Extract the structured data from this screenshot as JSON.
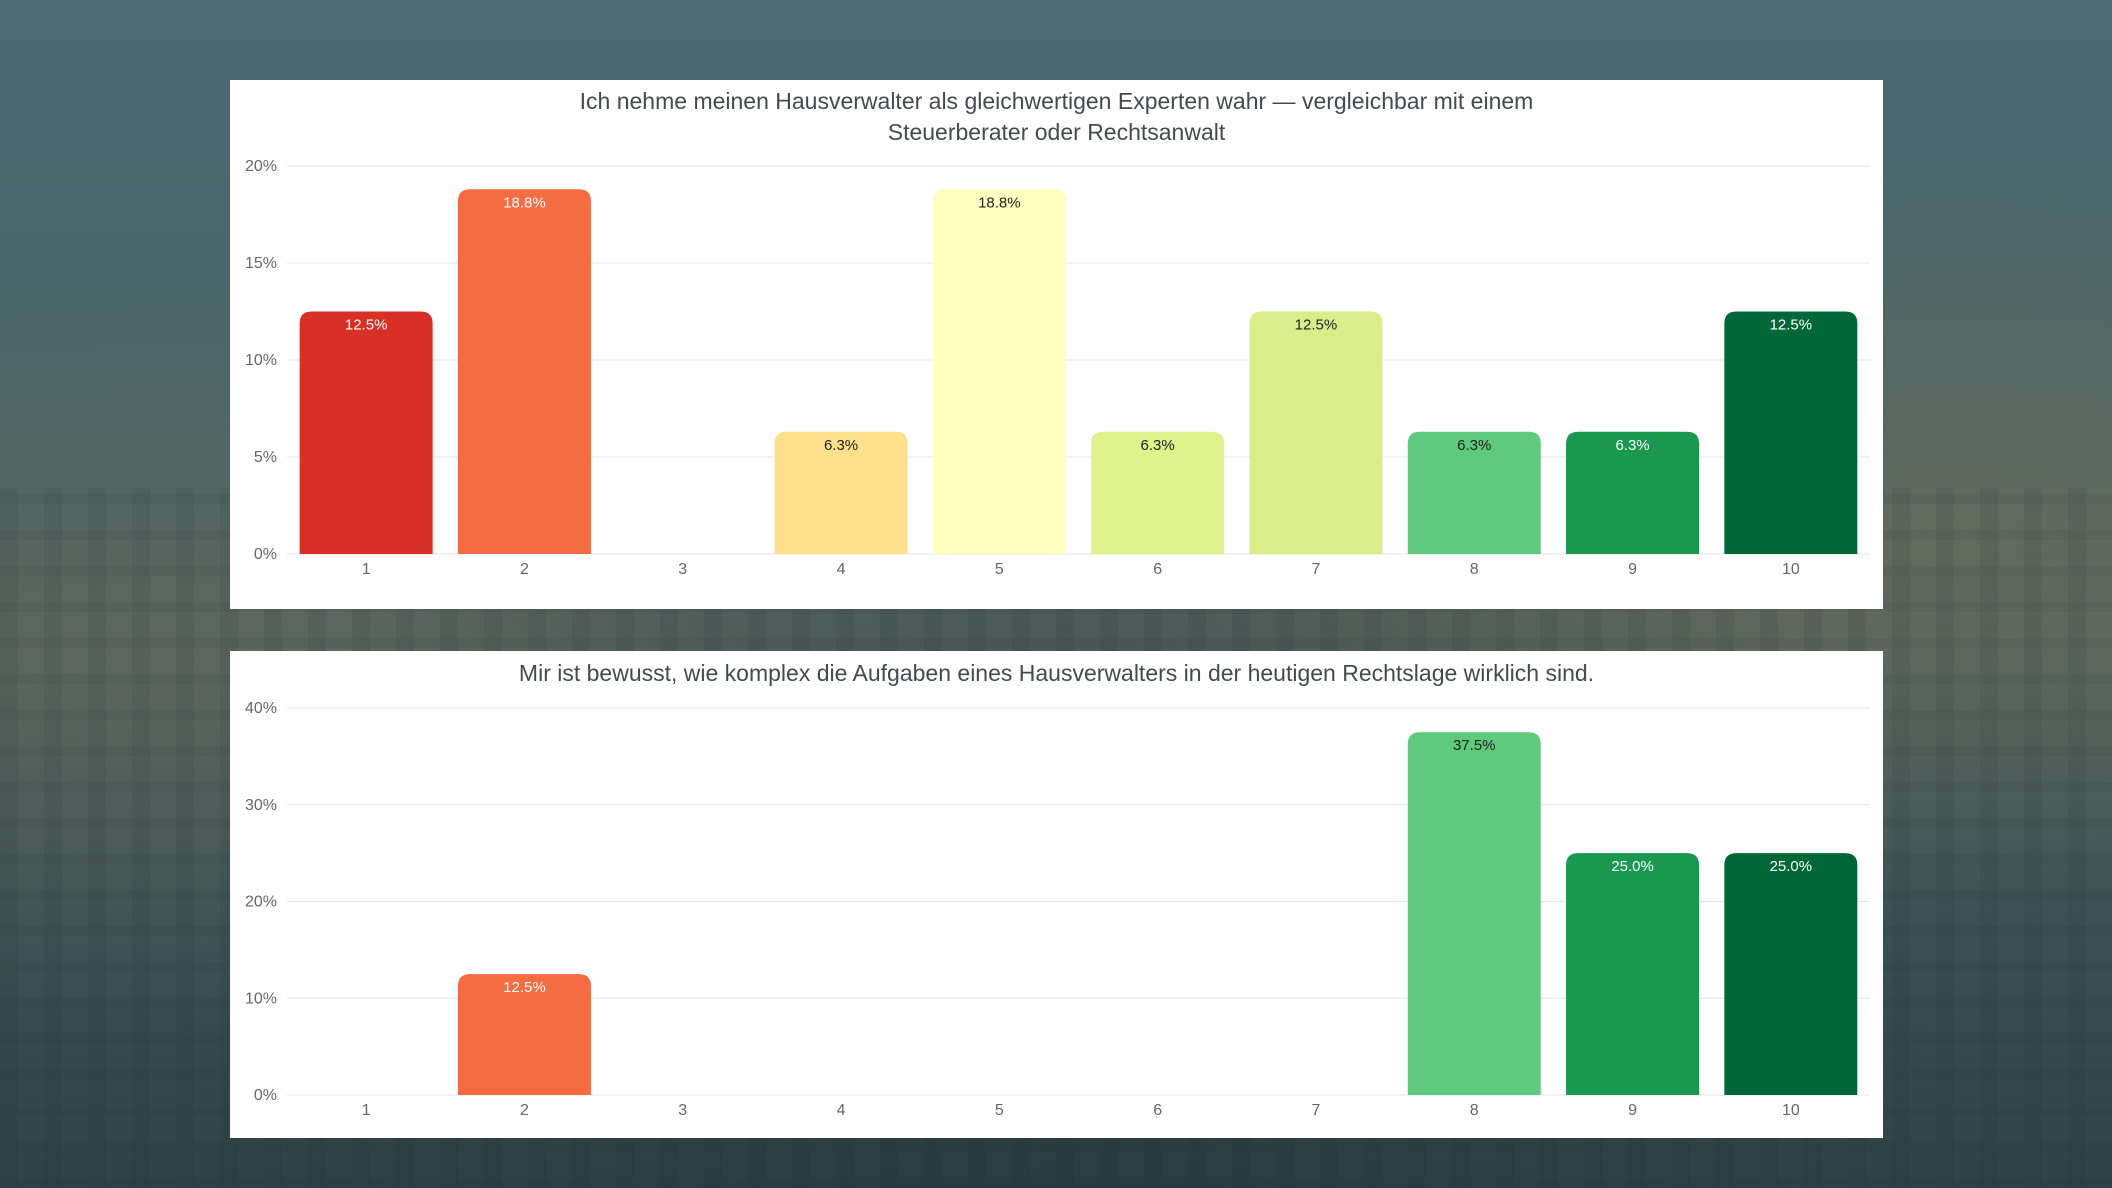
{
  "colors": {
    "scale": [
      "#d93025",
      "#f56c42",
      "#fba05a",
      "#fde08c",
      "#ffffbf",
      "#dff28c",
      "#d9ee8b",
      "#5fc97e",
      "#1a9850",
      "#006837"
    ],
    "gridline": "#e6e6e6",
    "axis_text": "#666666",
    "title_text": "#444a4f"
  },
  "chart_data": [
    {
      "type": "bar",
      "title": "Ich nehme meinen Hausverwalter als gleichwertigen Experten wahr — vergleichbar mit einem Steuerberater oder Rechtsanwalt",
      "categories": [
        "1",
        "2",
        "3",
        "4",
        "5",
        "6",
        "7",
        "8",
        "9",
        "10"
      ],
      "values": [
        12.5,
        18.8,
        0,
        6.3,
        18.8,
        6.3,
        12.5,
        6.3,
        6.3,
        12.5
      ],
      "data_labels": [
        "12.5%",
        "18.8%",
        "",
        "6.3%",
        "18.8%",
        "6.3%",
        "12.5%",
        "6.3%",
        "6.3%",
        "12.5%"
      ],
      "yticks": [
        "0%",
        "5%",
        "10%",
        "15%",
        "20%"
      ],
      "ylim": [
        0,
        20
      ],
      "grid": true,
      "xlabel": "",
      "ylabel": ""
    },
    {
      "type": "bar",
      "title": "Mir ist bewusst, wie komplex die Aufgaben eines Hausverwalters in der heutigen Rechtslage wirklich sind.",
      "categories": [
        "1",
        "2",
        "3",
        "4",
        "5",
        "6",
        "7",
        "8",
        "9",
        "10"
      ],
      "values": [
        0,
        12.5,
        0,
        0,
        0,
        0,
        0,
        37.5,
        25.0,
        25.0
      ],
      "data_labels": [
        "",
        "12.5%",
        "",
        "",
        "",
        "",
        "",
        "37.5%",
        "25.0%",
        "25.0%"
      ],
      "yticks": [
        "0%",
        "10%",
        "20%",
        "30%",
        "40%"
      ],
      "ylim": [
        0,
        40
      ],
      "grid": true,
      "xlabel": "",
      "ylabel": ""
    }
  ]
}
